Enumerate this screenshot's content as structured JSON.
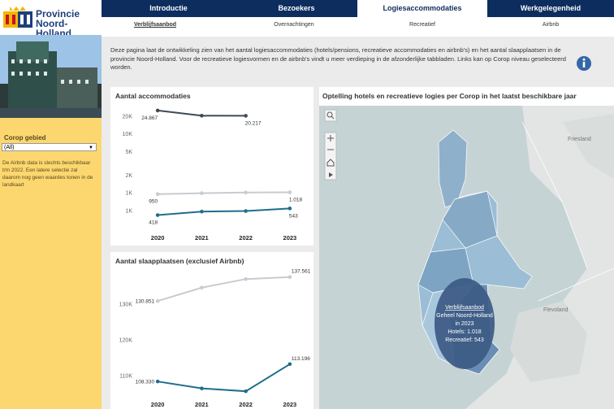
{
  "logo": {
    "line1": "Provincie",
    "line2": "Noord-Holland"
  },
  "nav": {
    "tabs": [
      "Introductie",
      "Bezoekers",
      "Logiesaccommodaties",
      "Werkgelegenheid"
    ],
    "active": 2
  },
  "subnav": {
    "tabs": [
      "Verblijfsaanbod",
      "Overnachtingen",
      "Recreatief",
      "Airbnb"
    ],
    "active": 0
  },
  "sidebar": {
    "filter_label": "Corop gebied",
    "filter_value": "(All)",
    "note": "De Airbnb data is slechts beschikbaar t/m 2022. Een latere selectie zal daarom nog geen waardes tonen in de landkaart"
  },
  "intro": "Deze pagina laat de ontwikkeling zien van het aantal logiesaccommodaties (hotels/pensions, recreatieve accommodaties en airbnb's) en het aantal slaapplaatsen in de provincie Noord-Holland. Voor de recreatieve logiesvormen en de airbnb's vindt u meer verdieping in de afzonderlijke tabbladen. Links kan op Corop niveau geselecteerd worden.",
  "charts": [
    {
      "type": "line",
      "title": "Aantal accommodaties",
      "log_scale": true,
      "categories": [
        "2020",
        "2021",
        "2022",
        "2023"
      ],
      "ylim": [
        300,
        30000
      ],
      "yticks": [
        {
          "value": 20000,
          "label": "20K"
        },
        {
          "value": 10000,
          "label": "10K"
        },
        {
          "value": 5000,
          "label": "5K"
        },
        {
          "value": 2000,
          "label": "2K"
        },
        {
          "value": 1000,
          "label": "1K"
        },
        {
          "value": 500,
          "label": "1K"
        }
      ],
      "series": [
        {
          "color": "#3e4a56",
          "values": [
            24867,
            20300,
            20217,
            null
          ],
          "value_labels": [
            "24.867",
            null,
            "20.217",
            null
          ]
        },
        {
          "color": "#c6ccd1",
          "values": [
            950,
            985,
            1010,
            1018
          ],
          "value_labels": [
            "950",
            null,
            null,
            "1.018"
          ]
        },
        {
          "color": "#1f6e8c",
          "values": [
            418,
            480,
            490,
            543
          ],
          "value_labels": [
            "418",
            null,
            null,
            "543"
          ]
        }
      ]
    },
    {
      "type": "line",
      "title": "Aantal slaapplaatsen (exclusief Airbnb)",
      "log_scale": false,
      "categories": [
        "2020",
        "2021",
        "2022",
        "2023"
      ],
      "ylim": [
        102000,
        139000
      ],
      "yticks": [
        {
          "value": 130000,
          "label": "130K"
        },
        {
          "value": 120000,
          "label": "120K"
        },
        {
          "value": 110000,
          "label": "110K"
        }
      ],
      "series": [
        {
          "color": "#c6ccd1",
          "values": [
            130851,
            134600,
            137000,
            137561
          ],
          "value_labels": [
            "130.851",
            null,
            null,
            "137.561"
          ]
        },
        {
          "color": "#1f6e8c",
          "values": [
            108330,
            106400,
            105600,
            113196
          ],
          "value_labels": [
            "108.330",
            null,
            null,
            "113.196"
          ]
        }
      ]
    }
  ],
  "map": {
    "title": "Optelling hotels en recreatieve logies per Corop in het laatst beschikbare jaar",
    "labels": [
      "Friesland",
      "Flevoland"
    ],
    "tooltip": [
      "Verblijfsaanbod",
      "Geheel Noord-Holland",
      "in 2023",
      "Hotels: 1.018",
      "Recreatief: 543"
    ]
  }
}
